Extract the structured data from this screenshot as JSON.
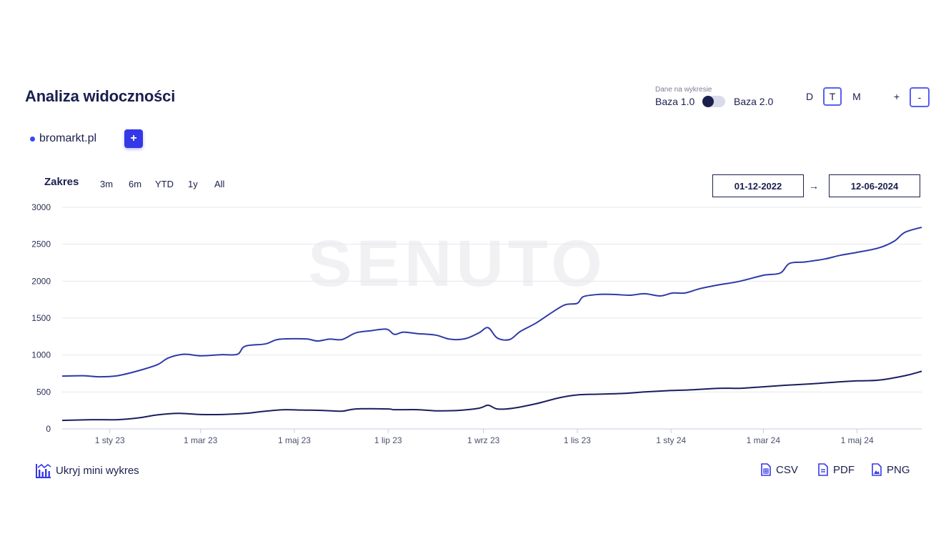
{
  "header": {
    "title": "Analiza widoczności"
  },
  "legend": {
    "domain": "bromarkt.pl",
    "add_label": "+"
  },
  "base_switch": {
    "caption": "Dane na wykresie",
    "left_label": "Baza 1.0",
    "right_label": "Baza 2.0",
    "selected": "Baza 1.0"
  },
  "granularity": {
    "day": "D",
    "week": "T",
    "month": "M",
    "active": "T"
  },
  "zoom": {
    "in": "+",
    "out": "-"
  },
  "range": {
    "label": "Zakres",
    "options": [
      "3m",
      "6m",
      "YTD",
      "1y",
      "All"
    ]
  },
  "dates": {
    "from": "01-12-2022",
    "arrow": "→",
    "to": "12-06-2024"
  },
  "watermark": "SENUTO",
  "footer": {
    "hide_mini": "Ukryj mini wykres",
    "csv": "CSV",
    "pdf": "PDF",
    "png": "PNG"
  },
  "colors": {
    "series_top": "#2d3aa8",
    "series_bottom": "#1a1f5e",
    "accent": "#3538e6",
    "grid": "#e6e7ee"
  },
  "chart_data": {
    "type": "line",
    "ylim": [
      0,
      3000
    ],
    "yticks": [
      "0",
      "500",
      "1000",
      "1500",
      "2000",
      "2500",
      "3000"
    ],
    "xticks": [
      {
        "label": "1 sty 23",
        "x": "2023-01-01"
      },
      {
        "label": "1 mar 23",
        "x": "2023-03-01"
      },
      {
        "label": "1 maj 23",
        "x": "2023-05-01"
      },
      {
        "label": "1 lip 23",
        "x": "2023-07-01"
      },
      {
        "label": "1 wrz 23",
        "x": "2023-09-01"
      },
      {
        "label": "1 lis 23",
        "x": "2023-11-01"
      },
      {
        "label": "1 sty 24",
        "x": "2024-01-01"
      },
      {
        "label": "1 mar 24",
        "x": "2024-03-01"
      },
      {
        "label": "1 maj 24",
        "x": "2024-05-01"
      }
    ],
    "xlim": [
      "2022-12-01",
      "2024-06-12"
    ],
    "series": [
      {
        "color": "#2d3aa8",
        "points": [
          [
            "2022-12-01",
            715
          ],
          [
            "2022-12-15",
            720
          ],
          [
            "2022-12-25",
            705
          ],
          [
            "2023-01-06",
            720
          ],
          [
            "2023-01-20",
            790
          ],
          [
            "2023-02-01",
            870
          ],
          [
            "2023-02-08",
            960
          ],
          [
            "2023-02-18",
            1010
          ],
          [
            "2023-03-01",
            990
          ],
          [
            "2023-03-15",
            1005
          ],
          [
            "2023-03-25",
            1010
          ],
          [
            "2023-03-30",
            1120
          ],
          [
            "2023-04-12",
            1150
          ],
          [
            "2023-04-20",
            1210
          ],
          [
            "2023-05-01",
            1220
          ],
          [
            "2023-05-10",
            1215
          ],
          [
            "2023-05-16",
            1190
          ],
          [
            "2023-05-24",
            1215
          ],
          [
            "2023-06-01",
            1210
          ],
          [
            "2023-06-10",
            1300
          ],
          [
            "2023-06-20",
            1330
          ],
          [
            "2023-06-30",
            1350
          ],
          [
            "2023-07-05",
            1280
          ],
          [
            "2023-07-11",
            1310
          ],
          [
            "2023-07-20",
            1290
          ],
          [
            "2023-08-01",
            1270
          ],
          [
            "2023-08-10",
            1215
          ],
          [
            "2023-08-20",
            1220
          ],
          [
            "2023-08-29",
            1300
          ],
          [
            "2023-09-04",
            1370
          ],
          [
            "2023-09-10",
            1230
          ],
          [
            "2023-09-18",
            1210
          ],
          [
            "2023-09-25",
            1320
          ],
          [
            "2023-10-05",
            1430
          ],
          [
            "2023-10-15",
            1570
          ],
          [
            "2023-10-24",
            1680
          ],
          [
            "2023-11-01",
            1700
          ],
          [
            "2023-11-05",
            1790
          ],
          [
            "2023-11-15",
            1820
          ],
          [
            "2023-11-25",
            1820
          ],
          [
            "2023-12-05",
            1810
          ],
          [
            "2023-12-15",
            1830
          ],
          [
            "2023-12-25",
            1800
          ],
          [
            "2024-01-02",
            1840
          ],
          [
            "2024-01-10",
            1840
          ],
          [
            "2024-01-20",
            1900
          ],
          [
            "2024-02-01",
            1950
          ],
          [
            "2024-02-15",
            2000
          ],
          [
            "2024-03-01",
            2080
          ],
          [
            "2024-03-12",
            2110
          ],
          [
            "2024-03-18",
            2240
          ],
          [
            "2024-03-28",
            2260
          ],
          [
            "2024-04-10",
            2300
          ],
          [
            "2024-04-20",
            2350
          ],
          [
            "2024-05-01",
            2390
          ],
          [
            "2024-05-15",
            2450
          ],
          [
            "2024-05-25",
            2540
          ],
          [
            "2024-06-01",
            2660
          ],
          [
            "2024-06-12",
            2730
          ]
        ]
      },
      {
        "color": "#1a1f5e",
        "points": [
          [
            "2022-12-01",
            115
          ],
          [
            "2022-12-20",
            125
          ],
          [
            "2023-01-06",
            125
          ],
          [
            "2023-01-20",
            150
          ],
          [
            "2023-02-01",
            190
          ],
          [
            "2023-02-15",
            210
          ],
          [
            "2023-03-01",
            195
          ],
          [
            "2023-03-15",
            195
          ],
          [
            "2023-03-30",
            210
          ],
          [
            "2023-04-12",
            240
          ],
          [
            "2023-04-25",
            260
          ],
          [
            "2023-05-06",
            255
          ],
          [
            "2023-05-20",
            250
          ],
          [
            "2023-06-01",
            240
          ],
          [
            "2023-06-10",
            270
          ],
          [
            "2023-07-01",
            270
          ],
          [
            "2023-07-05",
            260
          ],
          [
            "2023-07-20",
            260
          ],
          [
            "2023-08-01",
            245
          ],
          [
            "2023-08-15",
            250
          ],
          [
            "2023-08-29",
            280
          ],
          [
            "2023-09-04",
            320
          ],
          [
            "2023-09-10",
            270
          ],
          [
            "2023-09-20",
            280
          ],
          [
            "2023-10-05",
            340
          ],
          [
            "2023-10-20",
            420
          ],
          [
            "2023-11-01",
            460
          ],
          [
            "2023-11-15",
            470
          ],
          [
            "2023-12-01",
            480
          ],
          [
            "2023-12-15",
            500
          ],
          [
            "2024-01-01",
            520
          ],
          [
            "2024-01-15",
            530
          ],
          [
            "2024-02-01",
            550
          ],
          [
            "2024-02-15",
            550
          ],
          [
            "2024-03-01",
            570
          ],
          [
            "2024-03-15",
            590
          ],
          [
            "2024-04-01",
            610
          ],
          [
            "2024-04-15",
            630
          ],
          [
            "2024-05-01",
            650
          ],
          [
            "2024-05-15",
            660
          ],
          [
            "2024-06-01",
            720
          ],
          [
            "2024-06-12",
            780
          ]
        ]
      }
    ],
    "grid": true
  }
}
